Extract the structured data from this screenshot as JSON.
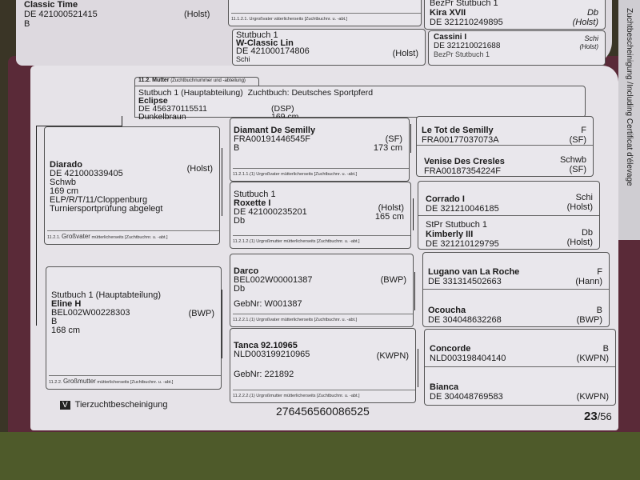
{
  "previous_page": {
    "sire_partial": {
      "name": "Classic Time",
      "id": "DE 421000521415",
      "breed": "(Holst)",
      "color": "B"
    },
    "label_1121": "11.1.2.1. Urgroßvater väterlicherseits [Zuchtbuchnr. u. -abt.]",
    "w_classic": {
      "studbook": "Stutbuch 1",
      "name": "W-Classic Lin",
      "id": "DE 421000174806",
      "color": "Schi",
      "breed": "(Holst)"
    },
    "kira": {
      "studbook": "BezPr  Stutbuch 1",
      "name": "Kira XVII",
      "id": "DE 321210249895",
      "color": "Db",
      "breed": "(Holst)"
    },
    "cassini": {
      "name": "Cassini I",
      "id": "DE 321210021688",
      "color": "Schi",
      "breed": "(Holst)",
      "next": "BezPr  Stutbuch 1"
    },
    "side_text": "Zuchtbescheinigung /Including Certificat d'élevage"
  },
  "mother": {
    "tab": "11.2. Mutter",
    "tab_hint": "(Zuchtbuchnummer und -abteilung)",
    "studbook": "Stutbuch 1 (Hauptabteilung)",
    "zuchtbuch": "Zuchtbuch:  Deutsches Sportpferd",
    "name": "Eclipse",
    "id": "DE 456370115511",
    "breed": "(DSP)",
    "color": "Dunkelbraun",
    "height": "169 cm"
  },
  "grandsire": {
    "name": "Diarado",
    "id": "DE 421000339405",
    "color": "Schwb",
    "height": "169 cm",
    "perf": "ELP/R/T/11/Cloppenburg",
    "perf2": "Turniersportprüfung abgelegt",
    "breed": "(Holst)",
    "label_num": "11.2.1.",
    "label_main": "Großvater",
    "label_hint": "mütterlicherseits [Zuchtbuchnr. u. -abt.]"
  },
  "granddam": {
    "studbook": "Stutbuch 1 (Hauptabteilung)",
    "name": "Eline H",
    "id": "BEL002W00228303",
    "color": "B",
    "height": "168 cm",
    "breed": "(BWP)",
    "label_num": "11.2.2.",
    "label_main": "Großmutter",
    "label_hint": "mütterlicherseits [Zuchtbuchnr. u. -abt.]"
  },
  "gen3": [
    {
      "studbook": "",
      "name": "Diamant De Semilly",
      "id": "FRA00191446545F",
      "color": "B",
      "breed": "(SF)",
      "height": "173 cm",
      "gebnr": "",
      "label": "11.2.1.1.(1) Urgroßvater mütterlicherseits [Zuchtbuchnr. u. -abt.]"
    },
    {
      "studbook": "Stutbuch 1",
      "name": "Roxette I",
      "id": "DE 421000235201",
      "color": "Db",
      "breed": "(Holst)",
      "height": "165 cm",
      "gebnr": "",
      "label": "11.2.1.2.(1) Urgroßmutter mütterlicherseits [Zuchtbuchnr. u. -abt.]"
    },
    {
      "studbook": "",
      "name": "Darco",
      "id": "BEL002W00001387",
      "color": "Db",
      "breed": "(BWP)",
      "height": "",
      "gebnr": "GebNr:  W001387",
      "label": "11.2.2.1.(1) Urgroßvater mütterlicherseits [Zuchtbuchnr. u. -abt.]"
    },
    {
      "studbook": "",
      "name": "Tanca 92.10965",
      "id": "NLD003199210965",
      "color": "",
      "breed": "(KWPN)",
      "height": "",
      "gebnr": "GebNr:  221892",
      "label": "11.2.2.2.(1) Urgroßmutter mütterlicherseits [Zuchtbuchnr. u. -abt.]"
    }
  ],
  "gen4": [
    {
      "studbook": "",
      "name": "Le Tot de Semilly",
      "id": "FRA00177037073A",
      "color": "F",
      "breed": "(SF)"
    },
    {
      "studbook": "",
      "name": "Venise Des Cresles",
      "id": "FRA00187354224F",
      "color": "Schwb",
      "breed": "(SF)"
    },
    {
      "studbook": "",
      "name": "Corrado I",
      "id": "DE 321210046185",
      "color": "Schi",
      "breed": "(Holst)"
    },
    {
      "studbook": "StPr   Stutbuch 1",
      "name": "Kimberly III",
      "id": "DE 321210129795",
      "color": "Db",
      "breed": "(Holst)"
    },
    {
      "studbook": "",
      "name": "Lugano van La Roche",
      "id": "DE 331314502663",
      "color": "F",
      "breed": "(Hann)"
    },
    {
      "studbook": "",
      "name": "Ocoucha",
      "id": "DE 304048632268",
      "color": "B",
      "breed": "(BWP)"
    },
    {
      "studbook": "",
      "name": "Concorde",
      "id": "NLD003198404140",
      "color": "B",
      "breed": "(KWPN)"
    },
    {
      "studbook": "",
      "name": "Bianca",
      "id": "DE 304048769583",
      "color": "",
      "breed": "(KWPN)"
    }
  ],
  "footer": {
    "section_letter": "V",
    "section_title": "Tierzuchtbescheinigung",
    "doc_number": "276456560086525",
    "page_current": "23",
    "page_total": "/56"
  }
}
